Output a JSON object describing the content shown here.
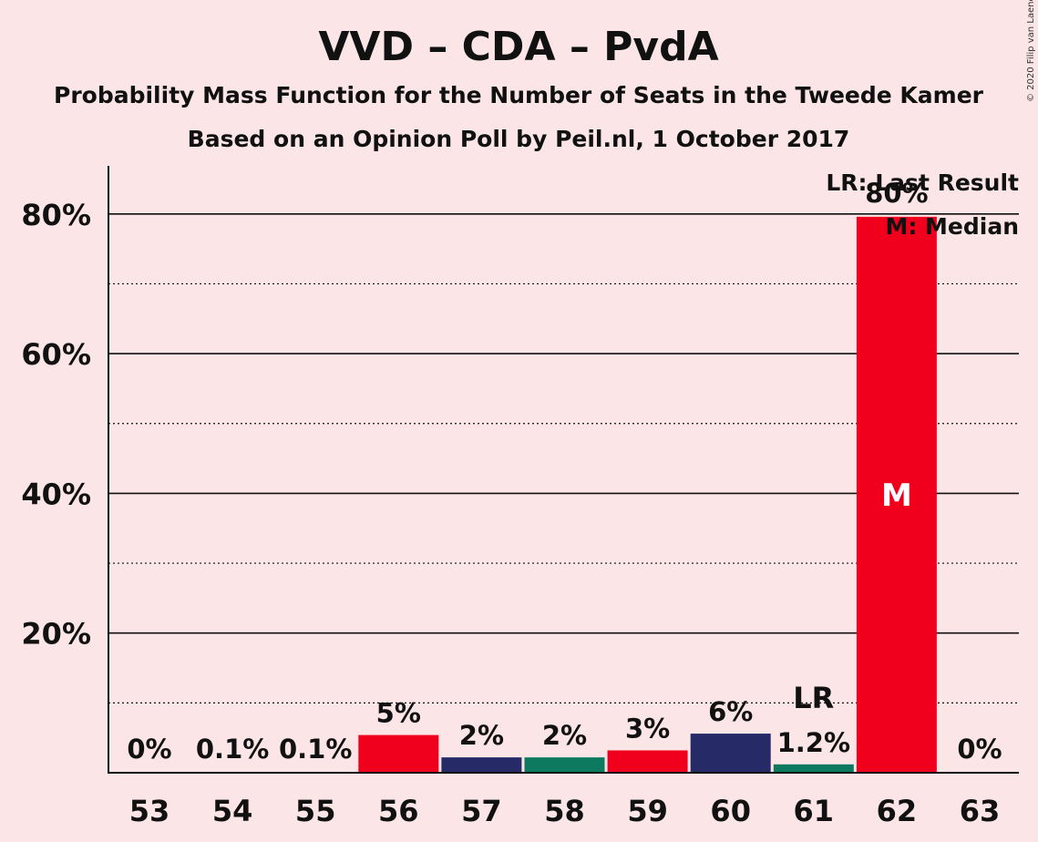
{
  "header": {
    "title": "VVD – CDA – PvdA",
    "subtitle1": "Probability Mass Function for the Number of Seats in the Tweede Kamer",
    "subtitle2": "Based on an Opinion Poll by Peil.nl, 1 October 2017"
  },
  "copyright": "© 2020 Filip van Laenen",
  "legend": {
    "last_result": "LR: Last Result",
    "median": "M: Median"
  },
  "markers": {
    "median_label": "M",
    "last_result_label": "LR"
  },
  "colors": {
    "background": "#fbe5e6",
    "vvd_red": "#f0001c",
    "cda_green": "#0d7a5f",
    "pvda_navy": "#262a67"
  },
  "chart_data": {
    "type": "bar",
    "title": "VVD – CDA – PvdA",
    "xlabel": "",
    "ylabel": "",
    "ylim": [
      0,
      87
    ],
    "yticks": [
      20,
      40,
      60,
      80
    ],
    "ytick_labels": [
      "20%",
      "40%",
      "60%",
      "80%"
    ],
    "minor_gridlines": [
      10,
      30,
      50,
      70
    ],
    "categories": [
      "53",
      "54",
      "55",
      "56",
      "57",
      "58",
      "59",
      "60",
      "61",
      "62",
      "63"
    ],
    "values": [
      0,
      0.1,
      0.1,
      5.4,
      2.2,
      2.2,
      3.2,
      5.6,
      1.2,
      79.6,
      0
    ],
    "labels": [
      "0%",
      "0.1%",
      "0.1%",
      "5%",
      "2%",
      "2%",
      "3%",
      "6%",
      "1.2%",
      "80%",
      "0%"
    ],
    "bar_colors": [
      "#f0001c",
      "#262a67",
      "#0d7a5f",
      "#f0001c",
      "#262a67",
      "#0d7a5f",
      "#f0001c",
      "#262a67",
      "#0d7a5f",
      "#f0001c",
      "#262a67"
    ],
    "median": "62",
    "last_result": "61",
    "legend_position": "top-right"
  }
}
